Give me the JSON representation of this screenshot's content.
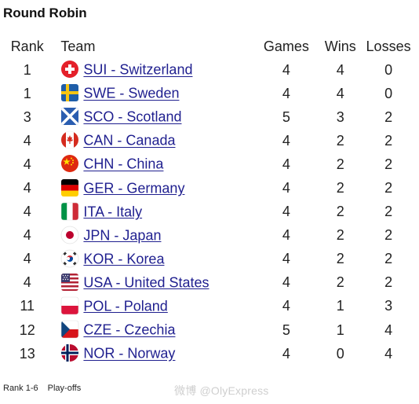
{
  "title": "Round Robin",
  "headers": {
    "rank": "Rank",
    "team": "Team",
    "games": "Games",
    "wins": "Wins",
    "losses": "Losses"
  },
  "rows": [
    {
      "rank": "1",
      "team": "SUI - Switzerland",
      "flag": "flag-switzerland-icon",
      "games": "4",
      "wins": "4",
      "losses": "0"
    },
    {
      "rank": "1",
      "team": "SWE - Sweden",
      "flag": "flag-sweden-icon",
      "games": "4",
      "wins": "4",
      "losses": "0"
    },
    {
      "rank": "3",
      "team": "SCO - Scotland",
      "flag": "flag-scotland-icon",
      "games": "5",
      "wins": "3",
      "losses": "2"
    },
    {
      "rank": "4",
      "team": "CAN - Canada",
      "flag": "flag-canada-icon",
      "games": "4",
      "wins": "2",
      "losses": "2"
    },
    {
      "rank": "4",
      "team": "CHN - China",
      "flag": "flag-china-icon",
      "games": "4",
      "wins": "2",
      "losses": "2"
    },
    {
      "rank": "4",
      "team": "GER - Germany",
      "flag": "flag-germany-icon",
      "games": "4",
      "wins": "2",
      "losses": "2"
    },
    {
      "rank": "4",
      "team": "ITA - Italy",
      "flag": "flag-italy-icon",
      "games": "4",
      "wins": "2",
      "losses": "2"
    },
    {
      "rank": "4",
      "team": "JPN - Japan",
      "flag": "flag-japan-icon",
      "games": "4",
      "wins": "2",
      "losses": "2"
    },
    {
      "rank": "4",
      "team": "KOR - Korea",
      "flag": "flag-korea-icon",
      "games": "4",
      "wins": "2",
      "losses": "2"
    },
    {
      "rank": "4",
      "team": "USA - United States",
      "flag": "flag-usa-icon",
      "games": "4",
      "wins": "2",
      "losses": "2"
    },
    {
      "rank": "11",
      "team": "POL - Poland",
      "flag": "flag-poland-icon",
      "games": "4",
      "wins": "1",
      "losses": "3"
    },
    {
      "rank": "12",
      "team": "CZE - Czechia",
      "flag": "flag-czechia-icon",
      "games": "5",
      "wins": "1",
      "losses": "4"
    },
    {
      "rank": "13",
      "team": "NOR - Norway",
      "flag": "flag-norway-icon",
      "games": "4",
      "wins": "0",
      "losses": "4"
    }
  ],
  "footer": {
    "legend_rank": "Rank 1-6",
    "legend_label": "Play-offs"
  },
  "watermark": "微博 @OlyExpress",
  "colors": {
    "link": "#1f1f8f",
    "text": "#222222"
  }
}
